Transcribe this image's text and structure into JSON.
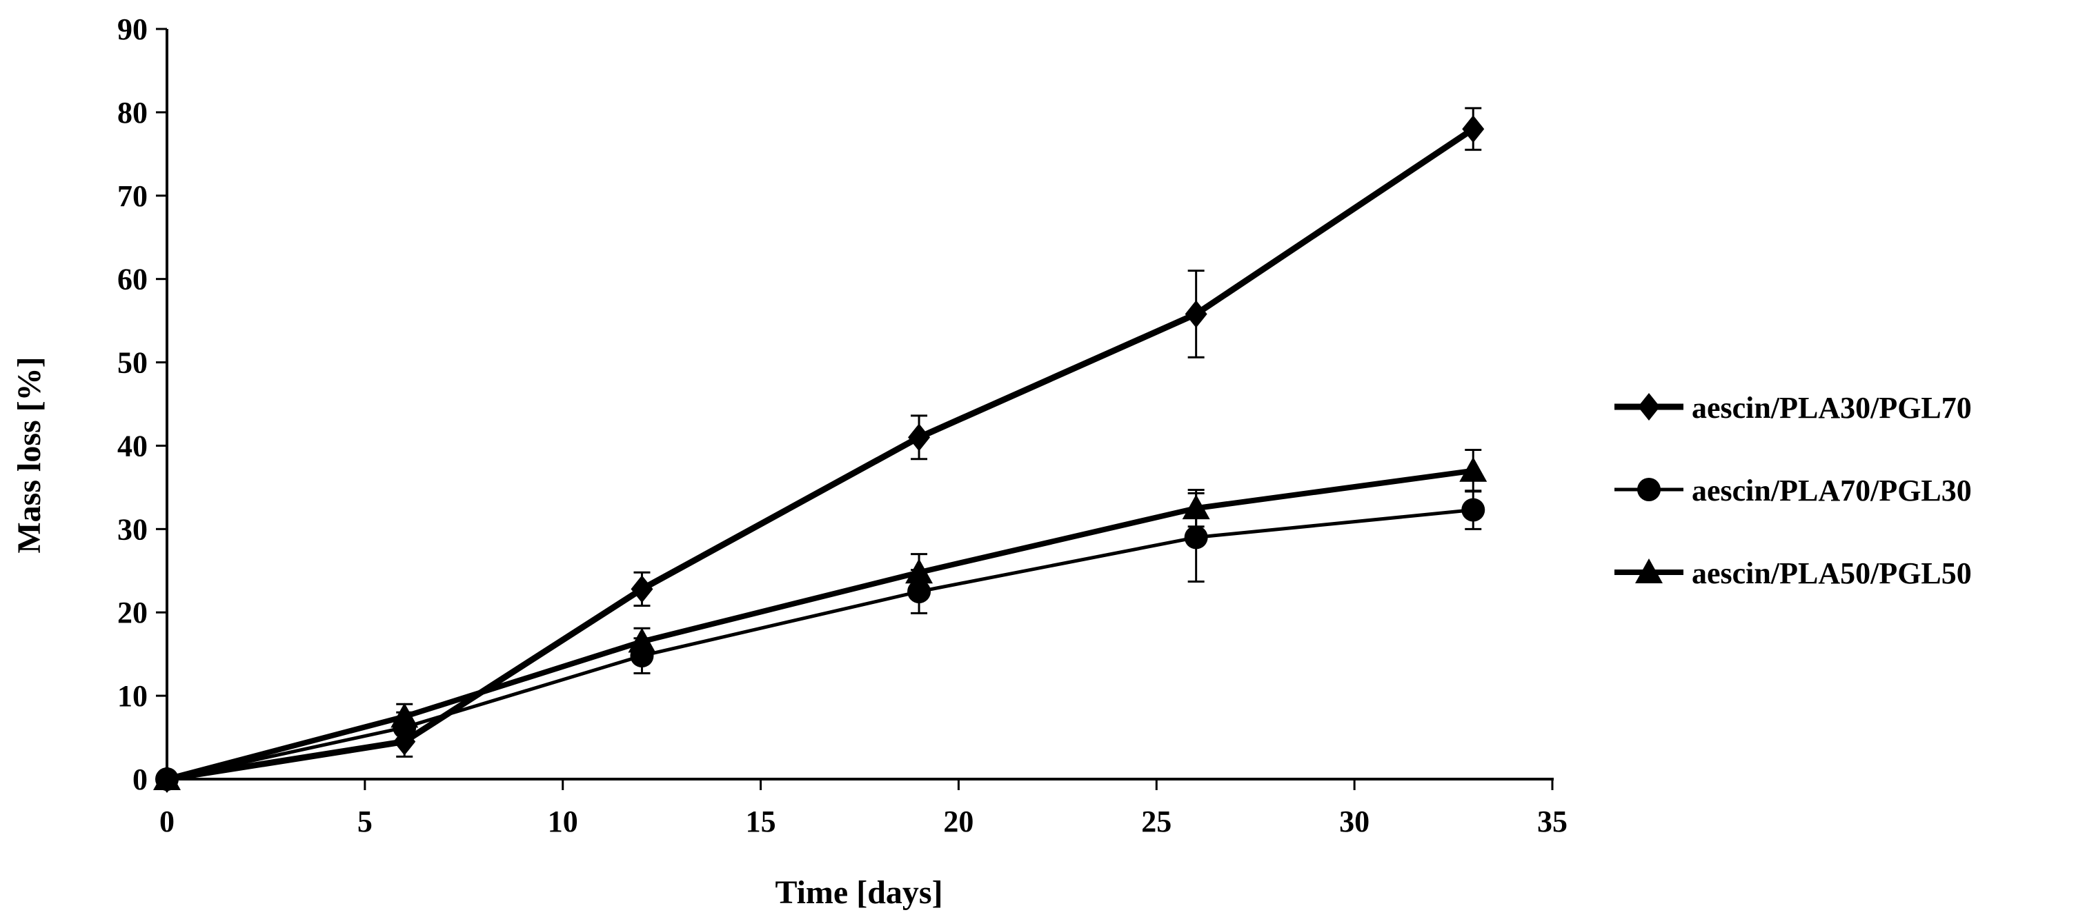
{
  "chart_data": {
    "type": "line",
    "title": "",
    "xlabel": "Time [days]",
    "ylabel": "Mass loss [%]",
    "xlim": [
      0,
      35
    ],
    "ylim": [
      0,
      90
    ],
    "xticks": [
      0,
      5,
      10,
      15,
      20,
      25,
      30,
      35
    ],
    "yticks": [
      0,
      10,
      20,
      30,
      40,
      50,
      60,
      70,
      80,
      90
    ],
    "grid": false,
    "legend_position": "right",
    "series": [
      {
        "name": "aescin/PLA30/PGL70",
        "marker": "diamond",
        "x": [
          0,
          6,
          12,
          19,
          26,
          33
        ],
        "y": [
          0,
          4.5,
          22.8,
          41.0,
          55.8,
          78.0
        ],
        "err": [
          0.3,
          1.8,
          2.0,
          2.6,
          5.2,
          2.5
        ]
      },
      {
        "name": "aescin/PLA70/PGL30",
        "marker": "circle",
        "x": [
          0,
          6,
          12,
          19,
          26,
          33
        ],
        "y": [
          0,
          6.2,
          14.8,
          22.5,
          29.0,
          32.3
        ],
        "err": [
          0.3,
          1.8,
          2.1,
          2.6,
          5.3,
          2.3
        ]
      },
      {
        "name": "aescin/PLA50/PGL50",
        "marker": "triangle",
        "x": [
          0,
          6,
          12,
          19,
          26,
          33
        ],
        "y": [
          0,
          7.5,
          16.5,
          24.8,
          32.5,
          37.0
        ],
        "err": [
          0.3,
          1.5,
          1.6,
          2.2,
          2.2,
          2.5
        ]
      }
    ],
    "colors": {
      "line": "#000000",
      "background": "#ffffff"
    }
  }
}
